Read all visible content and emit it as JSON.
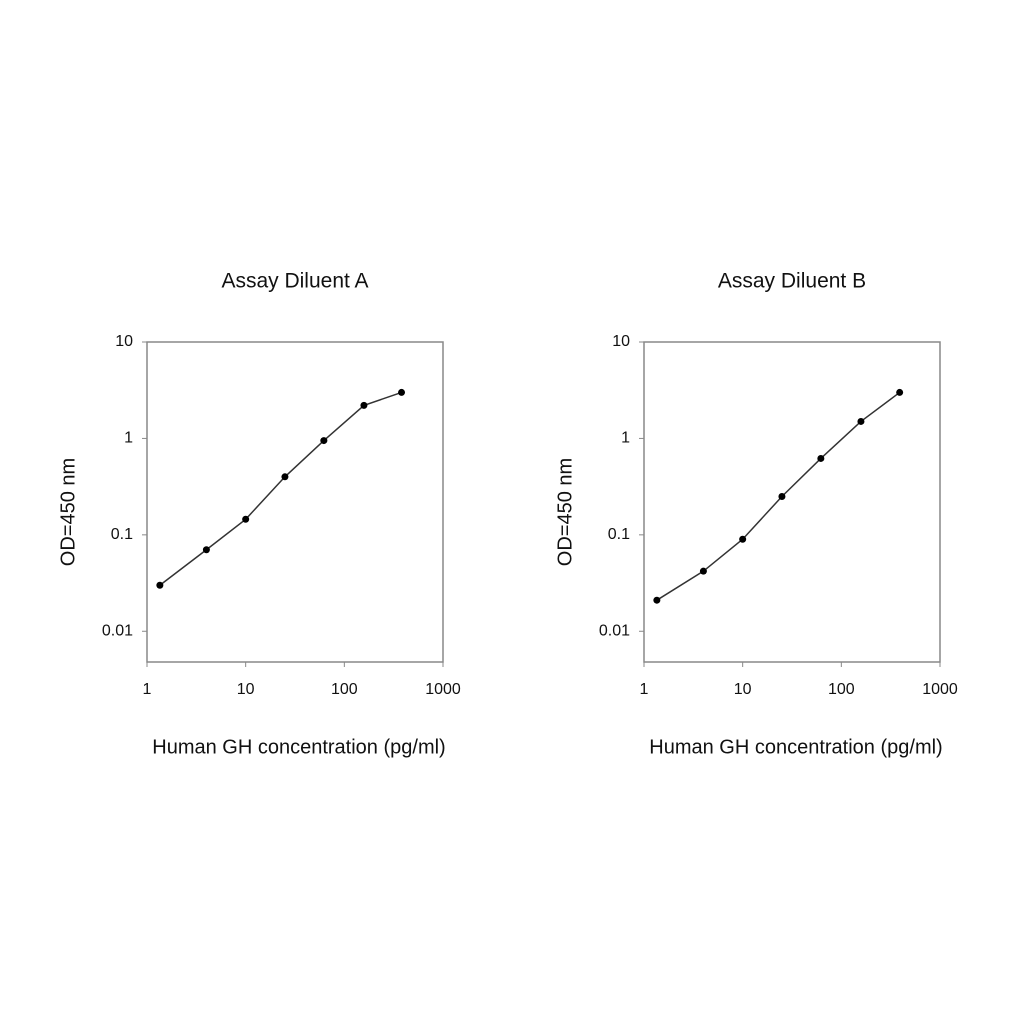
{
  "chart_data": [
    {
      "type": "line",
      "title": "Assay Diluent A",
      "x_label": "Human GH concentration (pg/ml)",
      "y_label": "OD=450 nm",
      "xscale": "log",
      "yscale": "log",
      "xlim": [
        1,
        1000
      ],
      "xticks": [
        1,
        10,
        100,
        1000
      ],
      "ylim": [
        0.0048,
        10
      ],
      "yticks": [
        0.01,
        0.1,
        1,
        10
      ],
      "x": [
        1.35,
        4,
        10,
        25,
        62,
        158,
        380
      ],
      "series": [
        {
          "name": "Assay Diluent A",
          "color": "#333333",
          "values": [
            0.03,
            0.07,
            0.145,
            0.4,
            0.95,
            2.2,
            3.0
          ]
        }
      ]
    },
    {
      "type": "line",
      "title": "Assay Diluent B",
      "x_label": "Human GH concentration (pg/ml)",
      "y_label": "OD=450 nm",
      "xscale": "log",
      "yscale": "log",
      "xlim": [
        1,
        1000
      ],
      "xticks": [
        1,
        10,
        100,
        1000
      ],
      "ylim": [
        0.0048,
        10
      ],
      "yticks": [
        0.01,
        0.1,
        1,
        10
      ],
      "x": [
        1.35,
        4,
        10,
        25,
        62,
        158,
        390
      ],
      "series": [
        {
          "name": "Assay Diluent B",
          "color": "#333333",
          "values": [
            0.021,
            0.042,
            0.09,
            0.25,
            0.62,
            1.5,
            3.0
          ]
        }
      ]
    }
  ]
}
